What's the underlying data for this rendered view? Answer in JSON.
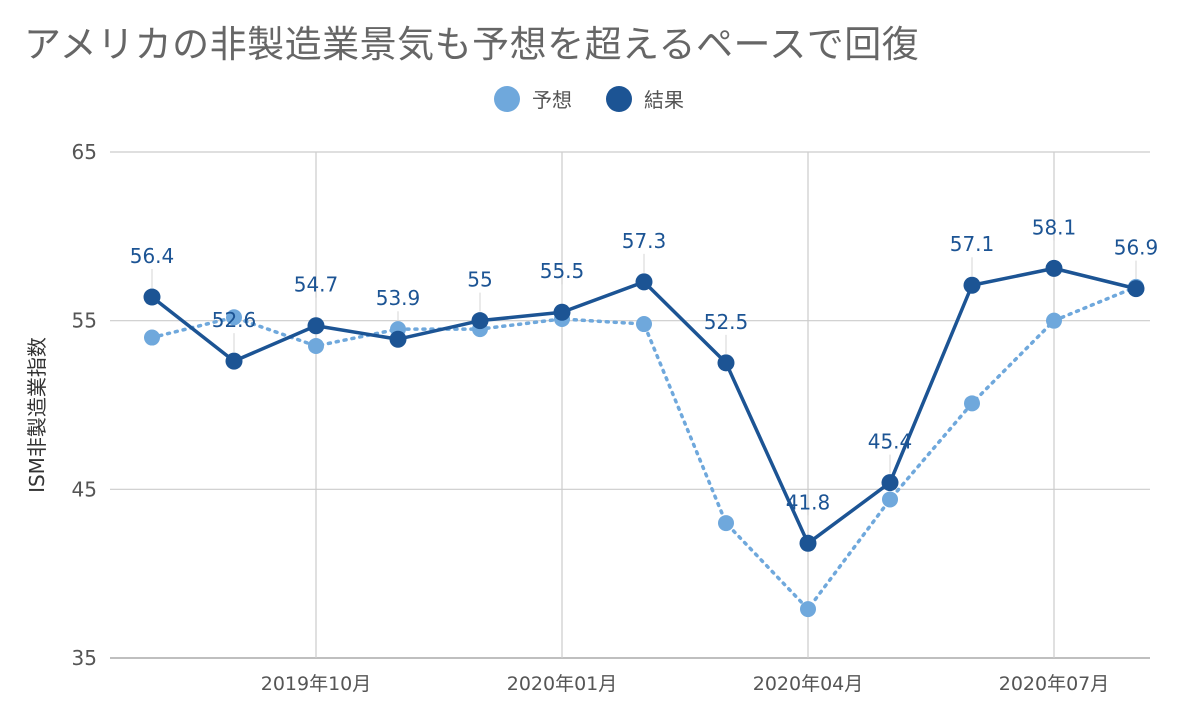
{
  "title": "アメリカの非製造業景気も予想を超えるペースで回復",
  "colors": {
    "forecast": "#6fa8dc",
    "result": "#1c5494",
    "grid": "#cccccc",
    "axis_text": "#555555",
    "label_text": "#1c5494"
  },
  "chart_data": {
    "type": "line",
    "ylabel": "ISM非製造業指数",
    "ylim": [
      35,
      65
    ],
    "yticks": [
      35,
      45,
      55,
      65
    ],
    "x": [
      "2019-08",
      "2019-09",
      "2019-10",
      "2019-11",
      "2019-12",
      "2020-01",
      "2020-02",
      "2020-03",
      "2020-04",
      "2020-05",
      "2020-06",
      "2020-07",
      "2020-08"
    ],
    "xtick_labels": [
      {
        "x": "2019-10",
        "label": "2019年10月"
      },
      {
        "x": "2020-01",
        "label": "2020年01月"
      },
      {
        "x": "2020-04",
        "label": "2020年04月"
      },
      {
        "x": "2020-07",
        "label": "2020年07月"
      }
    ],
    "grid": true,
    "legend_position": "top",
    "series": [
      {
        "name": "予想",
        "style": "dotted",
        "values": [
          54.0,
          55.2,
          53.5,
          54.5,
          54.5,
          55.1,
          54.8,
          43.0,
          37.9,
          44.4,
          50.1,
          55.0,
          57.0
        ]
      },
      {
        "name": "結果",
        "style": "solid",
        "values": [
          56.4,
          52.6,
          54.7,
          53.9,
          55.0,
          55.5,
          57.3,
          52.5,
          41.8,
          45.4,
          57.1,
          58.1,
          56.9
        ],
        "data_labels": [
          "56.4",
          "52.6",
          "54.7",
          "53.9",
          "55",
          "55.5",
          "57.3",
          "52.5",
          "41.8",
          "45.4",
          "57.1",
          "58.1",
          "56.9"
        ]
      }
    ]
  }
}
